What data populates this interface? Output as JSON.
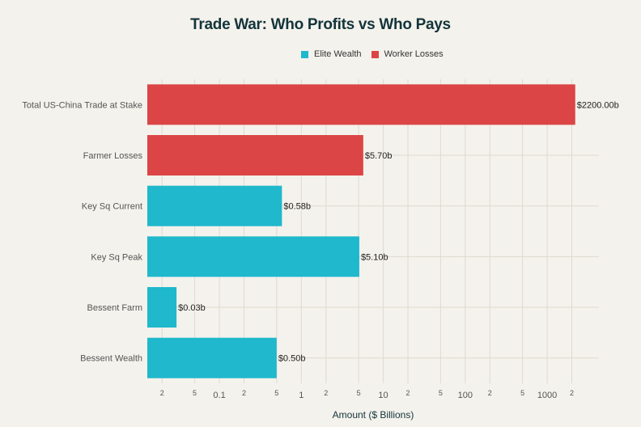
{
  "chart_data": {
    "type": "bar",
    "orientation": "horizontal",
    "title": "Trade War: Who Profits vs Who Pays",
    "xlabel": "Amount ($ Billions)",
    "ylabel": "",
    "x_scale": "log",
    "xlim": [
      0.0132,
      4280
    ],
    "grid": true,
    "legend_position": "top",
    "legend": [
      {
        "name": "Elite Wealth",
        "color": "#1FB8CD"
      },
      {
        "name": "Worker Losses",
        "color": "#DB4545"
      }
    ],
    "categories": [
      "Total US-China Trade at Stake",
      "Farmer Losses",
      "Key Sq Current",
      "Key Sq Peak",
      "Bessent Farm",
      "Bessent Wealth"
    ],
    "values": [
      2200,
      5.7,
      0.58,
      5.1,
      0.03,
      0.5
    ],
    "series_of": [
      "Worker Losses",
      "Worker Losses",
      "Elite Wealth",
      "Elite Wealth",
      "Elite Wealth",
      "Elite Wealth"
    ],
    "data_labels": [
      "$2200.00b",
      "$5.70b",
      "$0.58b",
      "$5.10b",
      "$0.03b",
      "$0.50b"
    ],
    "x_ticks": [
      {
        "value": 0.02,
        "label": "2"
      },
      {
        "value": 0.05,
        "label": "5"
      },
      {
        "value": 0.1,
        "label": "0.1"
      },
      {
        "value": 0.2,
        "label": "2"
      },
      {
        "value": 0.5,
        "label": "5"
      },
      {
        "value": 1,
        "label": "1"
      },
      {
        "value": 2,
        "label": "2"
      },
      {
        "value": 5,
        "label": "5"
      },
      {
        "value": 10,
        "label": "10"
      },
      {
        "value": 20,
        "label": "2"
      },
      {
        "value": 50,
        "label": "5"
      },
      {
        "value": 100,
        "label": "100"
      },
      {
        "value": 200,
        "label": "2"
      },
      {
        "value": 500,
        "label": "5"
      },
      {
        "value": 1000,
        "label": "1000"
      },
      {
        "value": 2000,
        "label": "2"
      }
    ]
  }
}
